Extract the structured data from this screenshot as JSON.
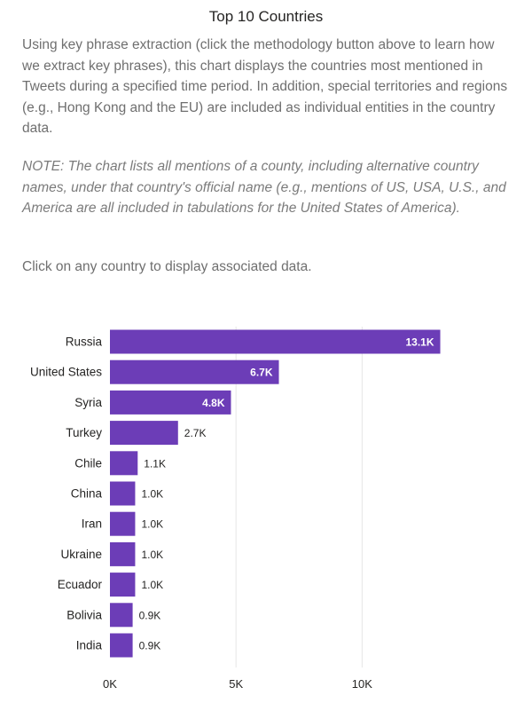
{
  "header": {
    "title": "Top 10 Countries"
  },
  "description": {
    "paragraph": "Using key phrase extraction (click the methodology button above to learn how we extract key phrases), this chart displays the countries most mentioned in Tweets during a specified time period. In addition, special territories and regions (e.g., Hong Kong and the EU) are included as individual entities in the country data.",
    "note": "NOTE: The chart lists all mentions of a county, including alternative country names, under that country's official name (e.g., mentions of US, USA, U.S., and America are all included in tabulations for the United States of America).",
    "instruction": "Click on any country to display associated data."
  },
  "colors": {
    "bar": "#6c3db7",
    "grid": "#e6e6e6",
    "label": "#252423",
    "value_inside": "#ffffff"
  },
  "chart_data": {
    "type": "bar",
    "orientation": "horizontal",
    "title": "",
    "xlabel": "",
    "ylabel": "",
    "categories": [
      "Russia",
      "United States",
      "Syria",
      "Turkey",
      "Chile",
      "China",
      "Iran",
      "Ukraine",
      "Ecuador",
      "Bolivia",
      "India"
    ],
    "values": [
      13100,
      6700,
      4800,
      2700,
      1100,
      1000,
      1000,
      1000,
      1000,
      900,
      900
    ],
    "value_labels": [
      "13.1K",
      "6.7K",
      "4.8K",
      "2.7K",
      "1.1K",
      "1.0K",
      "1.0K",
      "1.0K",
      "1.0K",
      "0.9K",
      "0.9K"
    ],
    "x_ticks": [
      0,
      5000,
      10000
    ],
    "x_tick_labels": [
      "0K",
      "5K",
      "10K"
    ],
    "xlim": [
      0,
      16000
    ],
    "grid": true
  }
}
